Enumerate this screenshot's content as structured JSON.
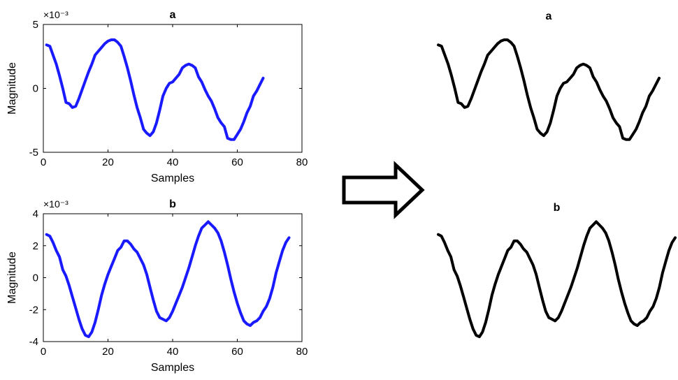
{
  "chart_data": [
    {
      "type": "line",
      "panel": "left-top",
      "title": "a",
      "xlabel": "Samples",
      "ylabel": "Magnitude",
      "scale_note": "×10⁻³",
      "xlim": [
        0,
        80
      ],
      "ylim": [
        -5,
        5
      ],
      "xticks": [
        0,
        20,
        40,
        60,
        80
      ],
      "yticks": [
        -5,
        0,
        5
      ],
      "xtick_labels": [
        "0",
        "20",
        "40",
        "60",
        "80"
      ],
      "ytick_labels": [
        "-5",
        "0",
        "5"
      ],
      "color": "#1a1aff",
      "series": [
        {
          "x": [
            1,
            2,
            3,
            4,
            5,
            6,
            7,
            8,
            9,
            10,
            11,
            12,
            13,
            14,
            15,
            16,
            17,
            18,
            19,
            20,
            21,
            22,
            23,
            24,
            25,
            26,
            27,
            28,
            29,
            30,
            31,
            32,
            33,
            34,
            35,
            36,
            37,
            38,
            39,
            40,
            41,
            42,
            43,
            44,
            45,
            46,
            47,
            48,
            49,
            50,
            51,
            52,
            53,
            54,
            55,
            56,
            57,
            58,
            59,
            60,
            61,
            62,
            63,
            64,
            65,
            66,
            67,
            68
          ],
          "values": [
            3.4,
            3.3,
            2.6,
            1.9,
            1.0,
            0.0,
            -1.1,
            -1.2,
            -1.5,
            -1.4,
            -0.8,
            -0.1,
            0.6,
            1.3,
            1.9,
            2.6,
            2.9,
            3.2,
            3.5,
            3.7,
            3.8,
            3.8,
            3.6,
            3.3,
            2.5,
            1.6,
            0.6,
            -0.5,
            -1.5,
            -2.3,
            -3.2,
            -3.5,
            -3.7,
            -3.4,
            -2.7,
            -1.7,
            -0.6,
            0.0,
            0.4,
            0.5,
            0.8,
            1.1,
            1.6,
            1.8,
            1.9,
            1.8,
            1.6,
            0.9,
            0.5,
            -0.1,
            -0.6,
            -1.0,
            -1.6,
            -2.3,
            -2.7,
            -3.0,
            -3.9,
            -4.0,
            -4.0,
            -3.6,
            -3.2,
            -2.6,
            -1.9,
            -1.4,
            -0.6,
            -0.2,
            0.3,
            0.8
          ]
        }
      ]
    },
    {
      "type": "line",
      "panel": "left-bottom",
      "title": "b",
      "xlabel": "Samples",
      "ylabel": "Magnitude",
      "scale_note": "×10⁻³",
      "xlim": [
        0,
        80
      ],
      "ylim": [
        -4,
        4
      ],
      "xticks": [
        0,
        20,
        40,
        60,
        80
      ],
      "yticks": [
        -4,
        -2,
        0,
        2,
        4
      ],
      "xtick_labels": [
        "0",
        "20",
        "40",
        "60",
        "80"
      ],
      "ytick_labels": [
        "-4",
        "-2",
        "0",
        "2",
        "4"
      ],
      "color": "#1a1aff",
      "series": [
        {
          "x": [
            1,
            2,
            3,
            4,
            5,
            6,
            7,
            8,
            9,
            10,
            11,
            12,
            13,
            14,
            15,
            16,
            17,
            18,
            19,
            20,
            21,
            22,
            23,
            24,
            25,
            26,
            27,
            28,
            29,
            30,
            31,
            32,
            33,
            34,
            35,
            36,
            37,
            38,
            39,
            40,
            41,
            42,
            43,
            44,
            45,
            46,
            47,
            48,
            49,
            50,
            51,
            52,
            53,
            54,
            55,
            56,
            57,
            58,
            59,
            60,
            61,
            62,
            63,
            64,
            65,
            66,
            67,
            68,
            69,
            70,
            71,
            72,
            73,
            74,
            75,
            76
          ],
          "values": [
            2.7,
            2.6,
            2.2,
            1.7,
            1.3,
            0.5,
            0.1,
            -0.5,
            -1.2,
            -1.9,
            -2.6,
            -3.2,
            -3.6,
            -3.7,
            -3.4,
            -2.8,
            -2.0,
            -1.1,
            -0.4,
            0.2,
            0.7,
            1.2,
            1.7,
            1.9,
            2.3,
            2.3,
            2.1,
            1.8,
            1.6,
            1.2,
            0.8,
            0.2,
            -0.6,
            -1.4,
            -2.1,
            -2.5,
            -2.6,
            -2.7,
            -2.5,
            -2.1,
            -1.6,
            -1.1,
            -0.6,
            0.0,
            0.6,
            1.3,
            2.0,
            2.6,
            3.1,
            3.3,
            3.5,
            3.3,
            3.1,
            2.8,
            2.3,
            1.6,
            0.8,
            -0.1,
            -0.9,
            -1.6,
            -2.2,
            -2.7,
            -2.9,
            -3.0,
            -2.8,
            -2.7,
            -2.5,
            -2.1,
            -1.8,
            -1.3,
            -0.6,
            0.3,
            1.0,
            1.7,
            2.2,
            2.5
          ]
        }
      ]
    },
    {
      "type": "line",
      "panel": "right-top",
      "title": "a",
      "color": "#000000",
      "ylim": [
        -5,
        5
      ],
      "series": [
        {
          "x": [
            1,
            2,
            3,
            4,
            5,
            6,
            7,
            8,
            9,
            10,
            11,
            12,
            13,
            14,
            15,
            16,
            17,
            18,
            19,
            20,
            21,
            22,
            23,
            24,
            25,
            26,
            27,
            28,
            29,
            30,
            31,
            32,
            33,
            34,
            35,
            36,
            37,
            38,
            39,
            40,
            41,
            42,
            43,
            44,
            45,
            46,
            47,
            48,
            49,
            50,
            51,
            52,
            53,
            54,
            55,
            56,
            57,
            58,
            59,
            60,
            61,
            62,
            63,
            64,
            65,
            66,
            67,
            68
          ],
          "values": [
            3.4,
            3.3,
            2.6,
            1.9,
            1.0,
            0.0,
            -1.1,
            -1.2,
            -1.5,
            -1.4,
            -0.8,
            -0.1,
            0.6,
            1.3,
            1.9,
            2.6,
            2.9,
            3.2,
            3.5,
            3.7,
            3.8,
            3.8,
            3.6,
            3.3,
            2.5,
            1.6,
            0.6,
            -0.5,
            -1.5,
            -2.3,
            -3.2,
            -3.5,
            -3.7,
            -3.4,
            -2.7,
            -1.7,
            -0.6,
            0.0,
            0.4,
            0.5,
            0.8,
            1.1,
            1.6,
            1.8,
            1.9,
            1.8,
            1.6,
            0.9,
            0.5,
            -0.1,
            -0.6,
            -1.0,
            -1.6,
            -2.3,
            -2.7,
            -3.0,
            -3.9,
            -4.0,
            -4.0,
            -3.6,
            -3.2,
            -2.6,
            -1.9,
            -1.4,
            -0.6,
            -0.2,
            0.3,
            0.8
          ]
        }
      ]
    },
    {
      "type": "line",
      "panel": "right-bottom",
      "title": "b",
      "color": "#000000",
      "ylim": [
        -4,
        4
      ],
      "series": [
        {
          "x": [
            1,
            2,
            3,
            4,
            5,
            6,
            7,
            8,
            9,
            10,
            11,
            12,
            13,
            14,
            15,
            16,
            17,
            18,
            19,
            20,
            21,
            22,
            23,
            24,
            25,
            26,
            27,
            28,
            29,
            30,
            31,
            32,
            33,
            34,
            35,
            36,
            37,
            38,
            39,
            40,
            41,
            42,
            43,
            44,
            45,
            46,
            47,
            48,
            49,
            50,
            51,
            52,
            53,
            54,
            55,
            56,
            57,
            58,
            59,
            60,
            61,
            62,
            63,
            64,
            65,
            66,
            67,
            68,
            69,
            70,
            71,
            72,
            73,
            74,
            75,
            76
          ],
          "values": [
            2.7,
            2.6,
            2.2,
            1.7,
            1.3,
            0.5,
            0.1,
            -0.5,
            -1.2,
            -1.9,
            -2.6,
            -3.2,
            -3.6,
            -3.7,
            -3.4,
            -2.8,
            -2.0,
            -1.1,
            -0.4,
            0.2,
            0.7,
            1.2,
            1.7,
            1.9,
            2.3,
            2.3,
            2.1,
            1.8,
            1.6,
            1.2,
            0.8,
            0.2,
            -0.6,
            -1.4,
            -2.1,
            -2.5,
            -2.6,
            -2.7,
            -2.5,
            -2.1,
            -1.6,
            -1.1,
            -0.6,
            0.0,
            0.6,
            1.3,
            2.0,
            2.6,
            3.1,
            3.3,
            3.5,
            3.3,
            3.1,
            2.8,
            2.3,
            1.6,
            0.8,
            -0.1,
            -0.9,
            -1.6,
            -2.2,
            -2.7,
            -2.9,
            -3.0,
            -2.8,
            -2.7,
            -2.5,
            -2.1,
            -1.8,
            -1.3,
            -0.6,
            0.3,
            1.0,
            1.7,
            2.2,
            2.5
          ]
        }
      ]
    }
  ],
  "arrow": {
    "icon": "right-arrow-icon",
    "color": "#000000"
  }
}
